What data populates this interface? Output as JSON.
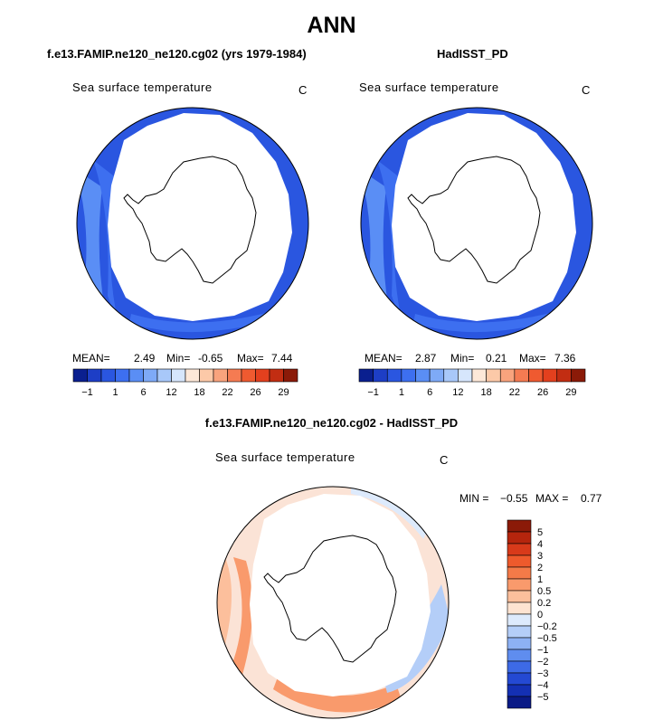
{
  "page": {
    "title": "ANN",
    "left_panel_title": "f.e13.FAMIP.ne120_ne120.cg02 (yrs 1979-1984)",
    "right_panel_title": "HadISST_PD",
    "diff_panel_title": "f.e13.FAMIP.ne120_ne120.cg02 - HadISST_PD"
  },
  "chart_data": [
    {
      "type": "heatmap",
      "id": "model",
      "variable_label": "Sea surface temperature",
      "units": "C",
      "projection": "south polar stereographic",
      "stats": {
        "mean_label": "MEAN=",
        "mean": "2.49",
        "min_label": "Min=",
        "min": "-0.65",
        "max_label": "Max=",
        "max": "7.44"
      },
      "colorbar": {
        "orientation": "horizontal",
        "tick_labels": [
          "−1",
          "1",
          "6",
          "12",
          "18",
          "22",
          "26",
          "29"
        ],
        "colors": [
          "#0a1f8f",
          "#1d3ec6",
          "#2a56e0",
          "#3d6ff0",
          "#5a8ef5",
          "#7eaaf7",
          "#a8c8f9",
          "#d6e6fc",
          "#fde8d8",
          "#fcc9a8",
          "#f9a37d",
          "#f57b52",
          "#ef5a30",
          "#e3401e",
          "#c22d12",
          "#8b1a08"
        ]
      }
    },
    {
      "type": "heatmap",
      "id": "observed",
      "variable_label": "Sea surface temperature",
      "units": "C",
      "projection": "south polar stereographic",
      "stats": {
        "mean_label": "MEAN=",
        "mean": "2.87",
        "min_label": "Min=",
        "min": "0.21",
        "max_label": "Max=",
        "max": "7.36"
      },
      "colorbar": {
        "orientation": "horizontal",
        "tick_labels": [
          "−1",
          "1",
          "6",
          "12",
          "18",
          "22",
          "26",
          "29"
        ],
        "colors": [
          "#0a1f8f",
          "#1d3ec6",
          "#2a56e0",
          "#3d6ff0",
          "#5a8ef5",
          "#7eaaf7",
          "#a8c8f9",
          "#d6e6fc",
          "#fde8d8",
          "#fcc9a8",
          "#f9a37d",
          "#f57b52",
          "#ef5a30",
          "#e3401e",
          "#c22d12",
          "#8b1a08"
        ]
      }
    },
    {
      "type": "heatmap",
      "id": "difference",
      "variable_label": "Sea surface temperature",
      "units": "C",
      "projection": "south polar stereographic",
      "stats": {
        "min_label": "MIN =",
        "min": "−0.55",
        "max_label": "MAX =",
        "max": "0.77"
      },
      "colorbar": {
        "orientation": "vertical",
        "tick_labels": [
          "5",
          "4",
          "3",
          "2",
          "1",
          "0.5",
          "0.2",
          "0",
          "−0.2",
          "−0.5",
          "−1",
          "−2",
          "−3",
          "−4",
          "−5"
        ],
        "colors": [
          "#8b1a08",
          "#b5250d",
          "#d83a1a",
          "#ee5a2c",
          "#f47a48",
          "#f99a6c",
          "#fcbf9c",
          "#fde3d1",
          "#ddeafc",
          "#b4cef8",
          "#8db1f4",
          "#5f8def",
          "#3d6ae6",
          "#2449d3",
          "#1430b4",
          "#0a1a86"
        ]
      }
    }
  ]
}
